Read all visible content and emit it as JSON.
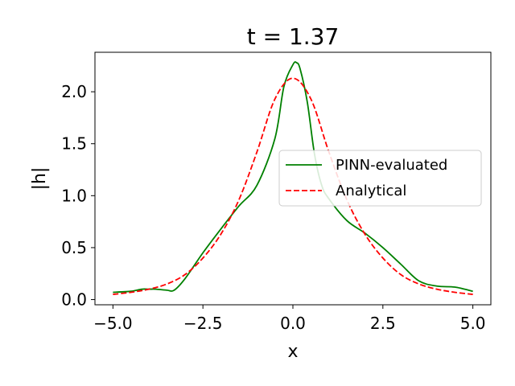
{
  "chart_data": {
    "type": "line",
    "title": "t = 1.37",
    "xlabel": "x",
    "ylabel": "|h|",
    "xlim": [
      -5.5,
      5.5
    ],
    "ylim": [
      -0.05,
      2.38
    ],
    "xticks": [
      -5.0,
      -2.5,
      0.0,
      2.5,
      5.0
    ],
    "xtick_labels": [
      "−5.0",
      "−2.5",
      "0.0",
      "2.5",
      "5.0"
    ],
    "yticks": [
      0.0,
      0.5,
      1.0,
      1.5,
      2.0
    ],
    "ytick_labels": [
      "0.0",
      "0.5",
      "1.0",
      "1.5",
      "2.0"
    ],
    "grid": false,
    "legend_position": "center-right",
    "series": [
      {
        "name": "PINN-evaluated",
        "color": "#008000",
        "style": "solid",
        "x": [
          -5.0,
          -4.5,
          -4.2,
          -4.0,
          -3.8,
          -3.5,
          -3.3,
          -3.0,
          -2.5,
          -2.0,
          -1.5,
          -1.0,
          -0.5,
          -0.25,
          0.0,
          0.1,
          0.2,
          0.4,
          0.6,
          0.8,
          1.0,
          1.5,
          2.0,
          2.5,
          3.0,
          3.5,
          4.0,
          4.5,
          5.0
        ],
        "y": [
          0.07,
          0.08,
          0.1,
          0.1,
          0.1,
          0.09,
          0.09,
          0.2,
          0.45,
          0.68,
          0.9,
          1.1,
          1.55,
          2.05,
          2.26,
          2.28,
          2.22,
          1.9,
          1.4,
          1.1,
          0.97,
          0.76,
          0.64,
          0.5,
          0.34,
          0.18,
          0.13,
          0.12,
          0.08
        ]
      },
      {
        "name": "Analytical",
        "color": "#ff0000",
        "style": "dashed",
        "x": [
          -5.0,
          -4.5,
          -4.0,
          -3.5,
          -3.0,
          -2.5,
          -2.0,
          -1.5,
          -1.0,
          -0.5,
          0.0,
          0.5,
          1.0,
          1.5,
          2.0,
          2.5,
          3.0,
          3.5,
          4.0,
          4.5,
          5.0
        ],
        "y": [
          0.05,
          0.07,
          0.1,
          0.15,
          0.24,
          0.4,
          0.63,
          0.96,
          1.42,
          1.93,
          2.13,
          1.93,
          1.42,
          0.96,
          0.63,
          0.4,
          0.24,
          0.15,
          0.1,
          0.07,
          0.05
        ]
      }
    ]
  }
}
